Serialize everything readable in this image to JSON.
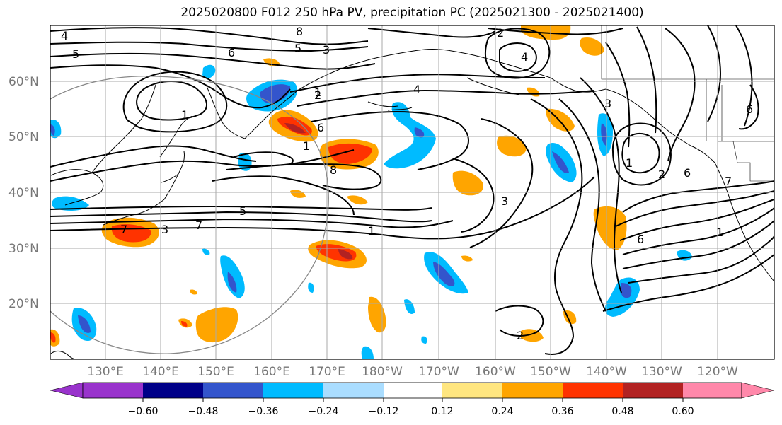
{
  "title": "2025020800 F012 250 hPa PV, precipitation PC (2025021300 - 2025021400)",
  "map": {
    "lat_labels": [
      "60°N",
      "50°N",
      "40°N",
      "30°N",
      "20°N"
    ],
    "lon_labels": [
      "130°E",
      "140°E",
      "150°E",
      "160°E",
      "170°E",
      "180°W",
      "170°W",
      "160°W",
      "150°W",
      "140°W",
      "130°W",
      "120°W"
    ],
    "contour_labels": [
      "8",
      "6",
      "5",
      "4",
      "3",
      "2",
      "1",
      "7",
      "5",
      "7",
      "1",
      "6",
      "3",
      "1",
      "8",
      "5",
      "4",
      "6",
      "1",
      "6",
      "2",
      "7",
      "1",
      "2",
      "3",
      "2",
      "4",
      "6",
      "3",
      "1"
    ],
    "grid": true,
    "contour_color": "#000000",
    "grid_color": "#aaaaaa"
  },
  "colorbar": {
    "ticks": [
      "−0.60",
      "−0.48",
      "−0.36",
      "−0.24",
      "−0.12",
      "0.12",
      "0.24",
      "0.36",
      "0.48",
      "0.60"
    ],
    "colors": [
      "#9933cc",
      "#000088",
      "#3355cc",
      "#00bbff",
      "#aaddff",
      "#ffffff",
      "#ffe680",
      "#ffa500",
      "#ff3300",
      "#b22222",
      "#ff88aa"
    ]
  }
}
